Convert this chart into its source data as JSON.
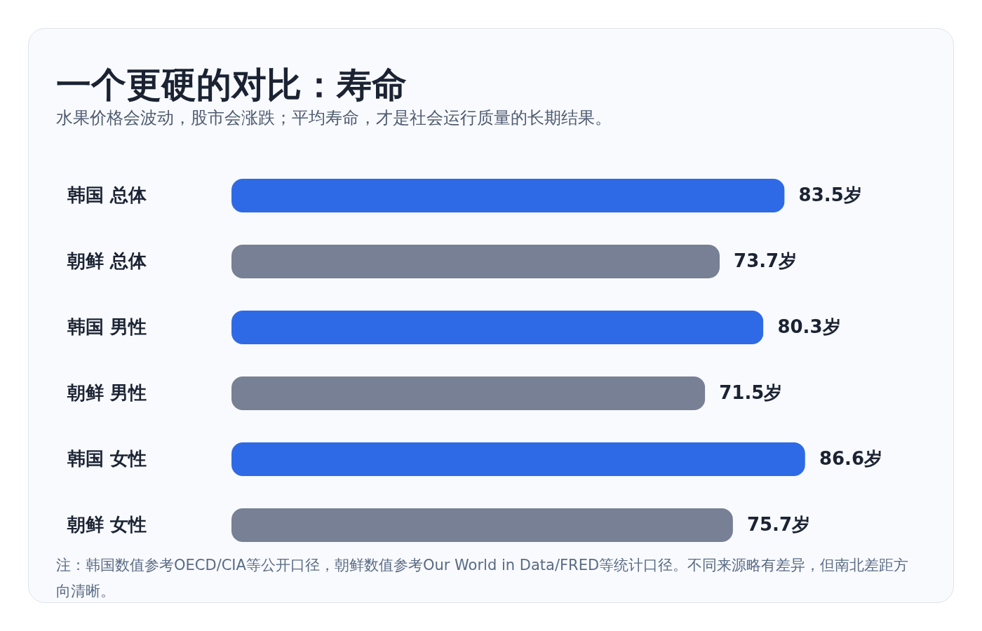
{
  "chart_data": {
    "type": "bar",
    "orientation": "horizontal",
    "title": "一个更硬的对比：寿命",
    "subtitle": "水果价格会波动，股市会涨跌；平均寿命，才是社会运行质量的长期结果。",
    "categories": [
      "韩国 总体",
      "朝鲜 总体",
      "韩国 男性",
      "朝鲜 男性",
      "韩国 女性",
      "朝鲜 女性"
    ],
    "values": [
      83.5,
      73.7,
      80.3,
      71.5,
      86.6,
      75.7
    ],
    "colors": [
      "#2f6ae6",
      "#778094",
      "#2f6ae6",
      "#778094",
      "#2f6ae6",
      "#778094"
    ],
    "value_labels": [
      "83.5岁",
      "73.7岁",
      "80.3岁",
      "71.5岁",
      "86.6岁",
      "75.7岁"
    ],
    "annotations": [
      "注：韩国数值参考OECD/CIA等公开口径，朝鲜数值参考Our World in Data/FRED等统计口径。不同来源略有差异，但南北差距方向清晰。"
    ]
  }
}
